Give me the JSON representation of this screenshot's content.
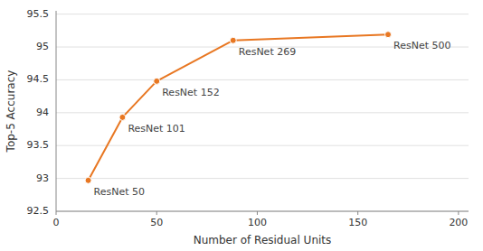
{
  "chart_data": {
    "type": "line",
    "x": [
      16,
      33,
      50,
      88,
      165
    ],
    "values": [
      92.97,
      93.93,
      94.48,
      95.1,
      95.19
    ],
    "color": "#E87722",
    "marker": "circle",
    "xlabel": "Number of Residual Units",
    "ylabel": "Top-5 Accuracy",
    "xlim": [
      0,
      205
    ],
    "ylim": [
      92.5,
      95.55
    ],
    "xticks": [
      0,
      50,
      100,
      150,
      200
    ],
    "yticks": [
      92.5,
      93,
      93.5,
      94,
      94.5,
      95,
      95.5
    ],
    "grid": true,
    "annotations": [
      {
        "text": "ResNet 50",
        "x": 16,
        "y": 92.97
      },
      {
        "text": "ResNet 101",
        "x": 33,
        "y": 93.93
      },
      {
        "text": "ResNet 152",
        "x": 50,
        "y": 94.48
      },
      {
        "text": "ResNet 269",
        "x": 88,
        "y": 95.1
      },
      {
        "text": "ResNet 500",
        "x": 165,
        "y": 95.19
      }
    ]
  }
}
